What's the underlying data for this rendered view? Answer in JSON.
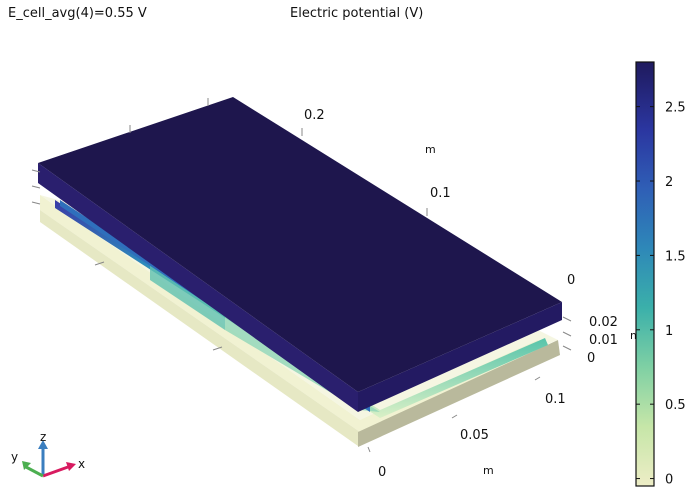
{
  "header": {
    "left_text": "E_cell_avg(4)=0.55 V",
    "plot_title": "Electric potential (V)"
  },
  "axes": {
    "y_ticks": [
      "0.2",
      "0.1",
      "0"
    ],
    "y_unit": "m",
    "z_ticks": [
      "0.02",
      "0.01",
      "0"
    ],
    "z_unit": "m",
    "x_ticks": [
      "0.1",
      "0.05",
      "0"
    ],
    "x_unit": "m"
  },
  "colorbar": {
    "ticks": [
      "2.5",
      "2",
      "1.5",
      "1",
      "0.5",
      "0"
    ],
    "tick_values": [
      2.5,
      2,
      1.5,
      1,
      0.5,
      0
    ],
    "min": -0.05,
    "max": 2.8,
    "colors": [
      "#ededc6",
      "#c6e6a8",
      "#7fd0a4",
      "#3bb0aa",
      "#2e88b8",
      "#2f5fb6",
      "#2b36a0",
      "#1f1a5e"
    ]
  },
  "triad": {
    "x_label": "x",
    "y_label": "y",
    "z_label": "z",
    "x_color": "#d81b60",
    "y_color": "#4caf50",
    "z_color": "#3a7ebf"
  },
  "colors": {
    "top_plate": "#1e164d",
    "top_plate_side": "#2a1f6e",
    "base_top": "#eceecb",
    "base_side": "#b8b89a"
  }
}
